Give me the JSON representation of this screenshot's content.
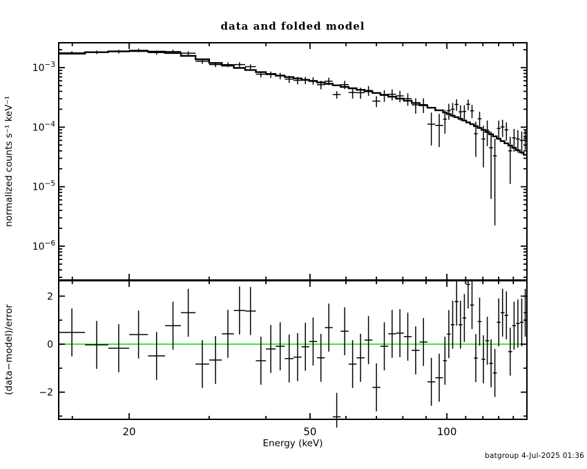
{
  "title": "data and folded model",
  "footer": "batgroup  4-Jul-2025 01:36",
  "chart_data": {
    "type": "scatter",
    "title": "data and folded model",
    "xlabel": "Energy (keV)",
    "notes": "XSPEC two-panel spectral fit. Top: binned data crosses with 1-sigma error bars and stepped folded-model histogram. Bottom: (data-model)/error residuals with unit error bars and green zero line. Per-bin data value = model*(1+residual*sigma_frac); per-bin sigma = model*sigma_frac.",
    "x_axis": {
      "scale": "log",
      "range": [
        14,
        150
      ],
      "major_ticks": [
        20,
        50,
        100
      ],
      "major_labels": [
        "20",
        "50",
        "100"
      ],
      "minor_ticks": [
        15,
        30,
        40,
        60,
        70,
        80,
        90,
        110,
        120,
        130,
        140
      ]
    },
    "panels": [
      {
        "name": "spectrum",
        "ylabel": "normalized counts s⁻¹ keV⁻¹",
        "yscale": "log",
        "yrange": [
          2.7e-07,
          0.00262
        ],
        "major_ticks": [
          {
            "value": 0.001,
            "label": "10^−3"
          },
          {
            "value": 0.0001,
            "label": "10^−4"
          },
          {
            "value": 1e-05,
            "label": "10^−5"
          },
          {
            "value": 1e-06,
            "label": "10^−6"
          }
        ]
      },
      {
        "name": "residuals",
        "ylabel": "(data−model)/error",
        "yscale": "linear",
        "yrange": [
          -3.134,
          2.645
        ],
        "major_ticks": [
          {
            "value": 2,
            "label": "2"
          },
          {
            "value": 0,
            "label": "0"
          },
          {
            "value": -2,
            "label": "−2"
          }
        ],
        "minor_ticks": [
          1,
          -1,
          -3
        ],
        "zero_line_color": "#00dd00",
        "error_bar_halfwidth": 1
      }
    ],
    "bin_edges": [
      14,
      16,
      18,
      20,
      22,
      24,
      26,
      28,
      30,
      32,
      34,
      36,
      38,
      40,
      42,
      44,
      46,
      47.9,
      49.8,
      51.8,
      53.9,
      56.1,
      58.4,
      60.8,
      63.3,
      65.9,
      68.6,
      71.4,
      74.3,
      77.3,
      80.4,
      83.7,
      87.1,
      90.6,
      94.3,
      98.1,
      100.0,
      102.0,
      104.0,
      106.1,
      108.2,
      110.3,
      112.5,
      114.7,
      116.9,
      119.2,
      121.5,
      123.9,
      126.3,
      128.8,
      131.3,
      133.9,
      136.5,
      139.2,
      141.9,
      144.7,
      147.5,
      150.0
    ],
    "model": [
      0.00172,
      0.00182,
      0.00188,
      0.0019,
      0.00186,
      0.00176,
      0.00158,
      0.00138,
      0.0012,
      0.00108,
      0.00099,
      0.00091,
      0.00084,
      0.000785,
      0.000735,
      0.000695,
      0.00066,
      0.000625,
      0.000595,
      0.000565,
      0.000535,
      0.000505,
      0.000475,
      0.00045,
      0.000425,
      0.0004,
      0.000375,
      0.00035,
      0.000325,
      0.000302,
      0.000278,
      0.000255,
      0.000233,
      0.000212,
      0.000192,
      0.000176,
      0.000166,
      0.000156,
      0.000147,
      0.000138,
      0.000129,
      0.00012,
      0.000112,
      0.000104,
      9.7e-05,
      9e-05,
      8.3e-05,
      7.6e-05,
      7e-05,
      6.4e-05,
      5.85e-05,
      5.35e-05,
      4.9e-05,
      4.5e-05,
      4.1e-05,
      3.75e-05,
      3.45e-05
    ],
    "residuals": [
      0.49,
      -0.03,
      -0.17,
      0.4,
      -0.49,
      0.77,
      1.31,
      -0.83,
      -0.66,
      0.43,
      1.4,
      1.38,
      -0.69,
      -0.2,
      -0.09,
      -0.6,
      -0.54,
      -0.11,
      0.11,
      -0.57,
      0.69,
      -3.03,
      0.54,
      -0.83,
      -0.57,
      0.17,
      -1.8,
      -0.09,
      0.43,
      0.46,
      0.31,
      -0.26,
      0.09,
      -1.57,
      -1.4,
      -0.69,
      0.42,
      0.81,
      1.77,
      0.81,
      1.09,
      2.49,
      1.63,
      -0.58,
      0.94,
      -0.63,
      0.14,
      -0.8,
      -1.2,
      0.91,
      1.31,
      1.2,
      -0.31,
      0.77,
      0.86,
      0.91,
      1.31
    ],
    "sigma_frac": [
      0.066,
      0.068,
      0.07,
      0.073,
      0.076,
      0.079,
      0.083,
      0.087,
      0.091,
      0.095,
      0.1,
      0.105,
      0.11,
      0.116,
      0.122,
      0.128,
      0.133,
      0.138,
      0.144,
      0.15,
      0.157,
      0.1,
      0.172,
      0.18,
      0.188,
      0.197,
      0.15,
      0.218,
      0.229,
      0.241,
      0.254,
      0.268,
      0.283,
      0.299,
      0.316,
      0.33,
      0.34,
      0.35,
      0.36,
      0.38,
      0.39,
      0.41,
      0.42,
      0.44,
      0.45,
      0.47,
      0.49,
      0.51,
      0.44,
      0.53,
      0.55,
      0.57,
      0.59,
      0.61,
      0.63,
      0.66,
      0.68
    ]
  }
}
